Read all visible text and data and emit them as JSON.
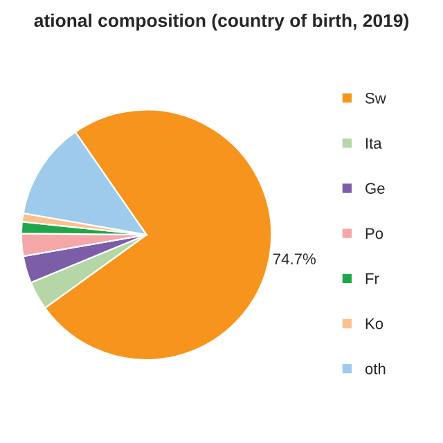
{
  "chart_data": {
    "type": "pie",
    "title": "ational composition (country of birth, 2019)",
    "categories": [
      "Sw",
      "Ita",
      "Ge",
      "Po",
      "Fr",
      "Ko",
      "oth"
    ],
    "values": [
      74.7,
      3.7,
      3.5,
      2.9,
      1.5,
      1.1,
      12.6
    ],
    "colors": [
      "#f7941d",
      "#b5d6a7",
      "#7b5ea7",
      "#f4a6a8",
      "#1fa64a",
      "#f9c18f",
      "#9ecbeb"
    ],
    "value_labels": [
      "74.7%",
      null,
      null,
      null,
      null,
      null,
      null
    ],
    "legend": "right"
  }
}
